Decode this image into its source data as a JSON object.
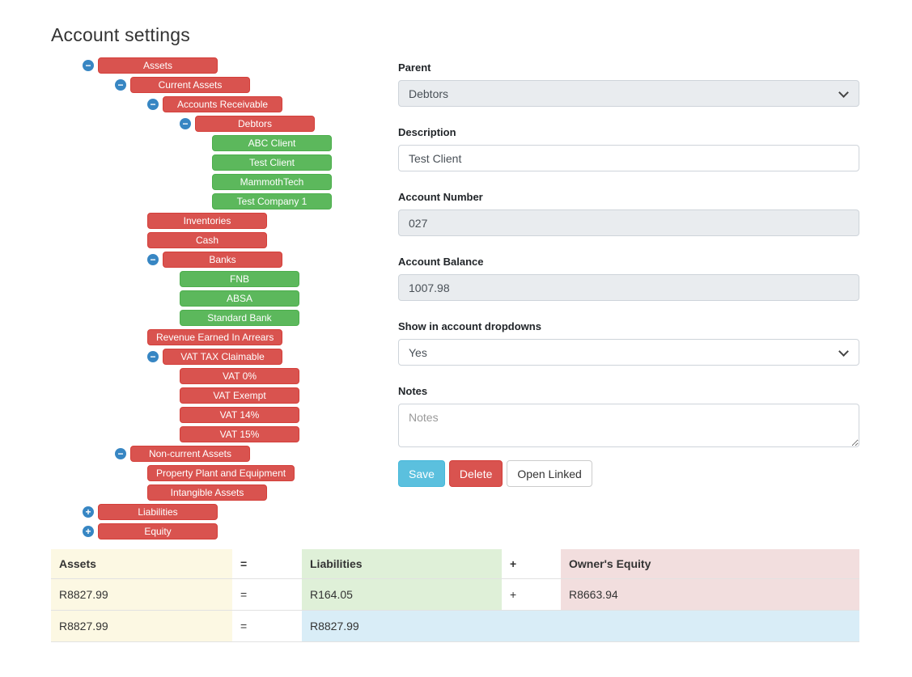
{
  "page": {
    "title": "Account settings"
  },
  "colors": {
    "node_red": "#d9534f",
    "node_green": "#5cb85c",
    "toggle_blue": "#3786c3",
    "save_blue": "#5bc0de",
    "delete_red": "#d9534f",
    "table_assets_bg": "#fcf8e3",
    "table_liabilities_bg": "#dff0d8",
    "table_equity_bg": "#f2dede",
    "table_total_bg": "#d9edf7",
    "disabled_field_bg": "#e9ecef"
  },
  "tree": {
    "nodes": [
      {
        "label": "Assets",
        "depth": 0,
        "type": "red",
        "toggle": "minus"
      },
      {
        "label": "Current Assets",
        "depth": 1,
        "type": "red",
        "toggle": "minus"
      },
      {
        "label": "Accounts Receivable",
        "depth": 2,
        "type": "red",
        "toggle": "minus"
      },
      {
        "label": "Debtors",
        "depth": 3,
        "type": "red",
        "toggle": "minus"
      },
      {
        "label": "ABC Client",
        "depth": 4,
        "type": "green",
        "toggle": "none"
      },
      {
        "label": "Test Client",
        "depth": 4,
        "type": "green",
        "toggle": "none"
      },
      {
        "label": "MammothTech",
        "depth": 4,
        "type": "green",
        "toggle": "none"
      },
      {
        "label": "Test Company 1",
        "depth": 4,
        "type": "green",
        "toggle": "none"
      },
      {
        "label": "Inventories",
        "depth": 2,
        "type": "red",
        "toggle": "none"
      },
      {
        "label": "Cash",
        "depth": 2,
        "type": "red",
        "toggle": "none"
      },
      {
        "label": "Banks",
        "depth": 2,
        "type": "red",
        "toggle": "minus"
      },
      {
        "label": "FNB",
        "depth": 3,
        "type": "green",
        "toggle": "none"
      },
      {
        "label": "ABSA",
        "depth": 3,
        "type": "green",
        "toggle": "none"
      },
      {
        "label": "Standard Bank",
        "depth": 3,
        "type": "green",
        "toggle": "none"
      },
      {
        "label": "Revenue Earned In Arrears",
        "depth": 2,
        "type": "red",
        "toggle": "none"
      },
      {
        "label": "VAT TAX Claimable",
        "depth": 2,
        "type": "red",
        "toggle": "minus"
      },
      {
        "label": "VAT 0%",
        "depth": 3,
        "type": "red",
        "toggle": "none"
      },
      {
        "label": "VAT Exempt",
        "depth": 3,
        "type": "red",
        "toggle": "none"
      },
      {
        "label": "VAT 14%",
        "depth": 3,
        "type": "red",
        "toggle": "none"
      },
      {
        "label": "VAT 15%",
        "depth": 3,
        "type": "red",
        "toggle": "none"
      },
      {
        "label": "Non-current Assets",
        "depth": 1,
        "type": "red",
        "toggle": "minus"
      },
      {
        "label": "Property Plant and Equipment",
        "depth": 2,
        "type": "red",
        "toggle": "none"
      },
      {
        "label": "Intangible Assets",
        "depth": 2,
        "type": "red",
        "toggle": "none"
      },
      {
        "label": "Liabilities",
        "depth": 0,
        "type": "red",
        "toggle": "plus"
      },
      {
        "label": "Equity",
        "depth": 0,
        "type": "red",
        "toggle": "plus"
      }
    ]
  },
  "form": {
    "parent": {
      "label": "Parent",
      "value": "Debtors"
    },
    "description": {
      "label": "Description",
      "value": "Test Client"
    },
    "account_number": {
      "label": "Account Number",
      "value": "027"
    },
    "account_balance": {
      "label": "Account Balance",
      "value": "1007.98"
    },
    "show_in_dropdowns": {
      "label": "Show in account dropdowns",
      "value": "Yes"
    },
    "notes": {
      "label": "Notes",
      "placeholder": "Notes"
    },
    "buttons": {
      "save": "Save",
      "delete": "Delete",
      "open_linked": "Open Linked"
    }
  },
  "equation_table": {
    "headers": [
      "Assets",
      "=",
      "Liabilities",
      "+",
      "Owner's Equity"
    ],
    "rows": [
      [
        "R8827.99",
        "=",
        "R164.05",
        "+",
        "R8663.94"
      ],
      [
        "R8827.99",
        "=",
        "R8827.99"
      ]
    ]
  }
}
